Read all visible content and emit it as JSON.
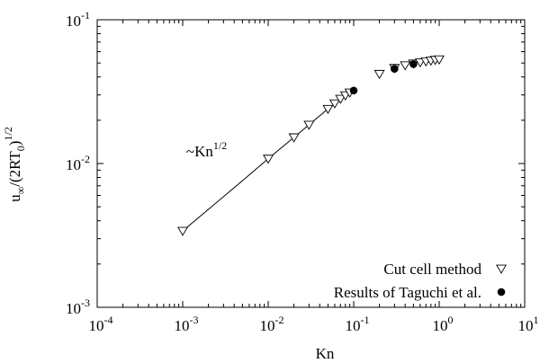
{
  "chart_data": {
    "type": "scatter",
    "xlabel": "Kn",
    "ylabel": "u∞/(2RT0)1/2",
    "ylabel_parts": {
      "base": "u",
      "sub1": "∞",
      "mid": "/(2RT",
      "sub2": "0",
      "close": ")",
      "sup": "1/2"
    },
    "x_scale": "log",
    "y_scale": "log",
    "xlim": [
      0.0001,
      10
    ],
    "ylim": [
      0.001,
      0.1
    ],
    "grid": false,
    "legend_position": "bottom-right",
    "x_ticks": [
      {
        "value": 0.0001,
        "base": "10",
        "exp": "-4"
      },
      {
        "value": 0.001,
        "base": "10",
        "exp": "-3"
      },
      {
        "value": 0.01,
        "base": "10",
        "exp": "-2"
      },
      {
        "value": 0.1,
        "base": "10",
        "exp": "-1"
      },
      {
        "value": 1,
        "base": "10",
        "exp": "0"
      },
      {
        "value": 10,
        "base": "10",
        "exp": "1"
      }
    ],
    "y_ticks": [
      {
        "value": 0.001,
        "base": "10",
        "exp": "-3"
      },
      {
        "value": 0.01,
        "base": "10",
        "exp": "-2"
      },
      {
        "value": 0.1,
        "base": "10",
        "exp": "-1"
      }
    ],
    "annotation": {
      "base": "~Kn",
      "sup": "1/2",
      "at": [
        0.0011,
        0.0112
      ]
    },
    "fit_line": {
      "x": [
        0.001,
        0.002,
        0.005,
        0.01,
        0.02,
        0.05,
        0.1
      ],
      "y": [
        0.0034,
        0.0048,
        0.0076,
        0.0108,
        0.0152,
        0.024,
        0.0322
      ]
    },
    "series": [
      {
        "name": "Cut cell method",
        "marker": "triangle-down-open",
        "x": [
          0.001,
          0.01,
          0.02,
          0.03,
          0.05,
          0.06,
          0.07,
          0.08,
          0.09,
          0.2,
          0.3,
          0.4,
          0.5,
          0.6,
          0.7,
          0.8,
          0.9,
          1.0
        ],
        "y": [
          0.0034,
          0.0108,
          0.0152,
          0.0186,
          0.024,
          0.0262,
          0.0282,
          0.0298,
          0.0312,
          0.042,
          0.0462,
          0.0482,
          0.0496,
          0.0506,
          0.0514,
          0.052,
          0.0526,
          0.053
        ]
      },
      {
        "name": "Results of Taguchi et al.",
        "marker": "circle-filled",
        "x": [
          0.1,
          0.3,
          0.5
        ],
        "y": [
          0.0322,
          0.0456,
          0.0492
        ]
      }
    ]
  }
}
